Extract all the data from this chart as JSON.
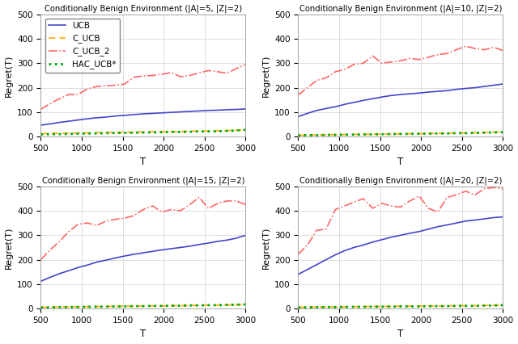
{
  "titles": [
    "Conditionally Benign Environment (|A|=5, |Z|=2)",
    "Conditionally Benign Environment (|A|=10, |Z|=2)",
    "Conditionally Benign Environment (|A|=15, |Z|=2)",
    "Conditionally Benign Environment (|A|=20, |Z|=2)"
  ],
  "xlabel": "T",
  "ylabel": "Regret(T)",
  "xlim": [
    500,
    3000
  ],
  "ylim": [
    0,
    500
  ],
  "xticks": [
    500,
    1000,
    1500,
    2000,
    2500,
    3000
  ],
  "yticks": [
    0,
    100,
    200,
    300,
    400,
    500
  ],
  "legend_labels": [
    "UCB",
    "C_UCB",
    "C_UCB_2",
    "HAC_UCB*"
  ],
  "colors": {
    "UCB": "#4444cc",
    "C_UCB": "#ffaa00",
    "C_UCB_2": "#ff6666",
    "HAC_UCB*": "#00aa00"
  },
  "show_legend": [
    true,
    false,
    false,
    false
  ],
  "subplots": [
    {
      "UCB": [
        47,
        52,
        58,
        63,
        68,
        73,
        77,
        80,
        84,
        87,
        90,
        93,
        95,
        97,
        99,
        101,
        103,
        105,
        107,
        108,
        110,
        111,
        113
      ],
      "C_UCB": [
        12,
        13,
        14,
        14,
        15,
        15,
        16,
        17,
        17,
        18,
        18,
        19,
        20,
        20,
        21,
        21,
        22,
        23,
        23,
        24,
        25,
        26,
        27
      ],
      "C_UCB_2": [
        112,
        135,
        155,
        172,
        173,
        195,
        205,
        208,
        210,
        215,
        243,
        248,
        250,
        255,
        262,
        245,
        250,
        260,
        270,
        265,
        260,
        278,
        295
      ],
      "HAC_UCB*": [
        9,
        10,
        10,
        11,
        12,
        13,
        13,
        14,
        15,
        15,
        16,
        17,
        17,
        18,
        19,
        19,
        20,
        21,
        21,
        22,
        23,
        25,
        28
      ]
    },
    {
      "UCB": [
        82,
        95,
        107,
        115,
        122,
        132,
        140,
        148,
        155,
        162,
        168,
        172,
        175,
        178,
        182,
        185,
        188,
        193,
        197,
        200,
        205,
        210,
        215
      ],
      "C_UCB": [
        5,
        6,
        7,
        7,
        8,
        8,
        9,
        9,
        10,
        10,
        11,
        11,
        12,
        12,
        13,
        13,
        14,
        15,
        15,
        16,
        17,
        18,
        20
      ],
      "C_UCB_2": [
        170,
        200,
        230,
        240,
        265,
        275,
        295,
        300,
        330,
        300,
        305,
        310,
        320,
        315,
        325,
        335,
        340,
        355,
        370,
        360,
        355,
        365,
        352
      ],
      "HAC_UCB*": [
        5,
        6,
        6,
        7,
        7,
        8,
        8,
        9,
        9,
        10,
        10,
        11,
        11,
        12,
        12,
        13,
        13,
        14,
        14,
        15,
        16,
        17,
        18
      ]
    },
    {
      "UCB": [
        112,
        128,
        143,
        155,
        168,
        178,
        190,
        198,
        207,
        215,
        222,
        228,
        234,
        240,
        245,
        250,
        255,
        262,
        268,
        275,
        280,
        288,
        300
      ],
      "C_UCB": [
        5,
        6,
        6,
        7,
        7,
        8,
        8,
        9,
        9,
        10,
        10,
        11,
        11,
        11,
        12,
        12,
        13,
        13,
        14,
        14,
        15,
        16,
        17
      ],
      "C_UCB_2": [
        200,
        240,
        275,
        315,
        345,
        350,
        340,
        358,
        365,
        370,
        380,
        405,
        420,
        395,
        405,
        400,
        425,
        455,
        410,
        430,
        440,
        440,
        425
      ],
      "HAC_UCB*": [
        5,
        5,
        6,
        6,
        7,
        7,
        8,
        8,
        9,
        9,
        10,
        10,
        11,
        11,
        12,
        12,
        13,
        13,
        14,
        14,
        15,
        16,
        17
      ]
    },
    {
      "UCB": [
        140,
        160,
        180,
        200,
        220,
        237,
        250,
        260,
        272,
        282,
        292,
        300,
        308,
        315,
        325,
        335,
        342,
        350,
        358,
        362,
        367,
        372,
        375
      ],
      "C_UCB": [
        5,
        6,
        6,
        7,
        7,
        7,
        8,
        8,
        9,
        9,
        9,
        10,
        10,
        10,
        11,
        11,
        11,
        12,
        12,
        12,
        13,
        13,
        14
      ],
      "C_UCB_2": [
        222,
        260,
        320,
        325,
        405,
        420,
        435,
        450,
        410,
        430,
        420,
        415,
        440,
        460,
        410,
        395,
        455,
        465,
        480,
        465,
        490,
        495,
        490
      ],
      "HAC_UCB*": [
        5,
        5,
        6,
        6,
        6,
        7,
        7,
        7,
        8,
        8,
        8,
        9,
        9,
        9,
        10,
        10,
        10,
        11,
        11,
        11,
        12,
        13,
        14
      ]
    }
  ]
}
